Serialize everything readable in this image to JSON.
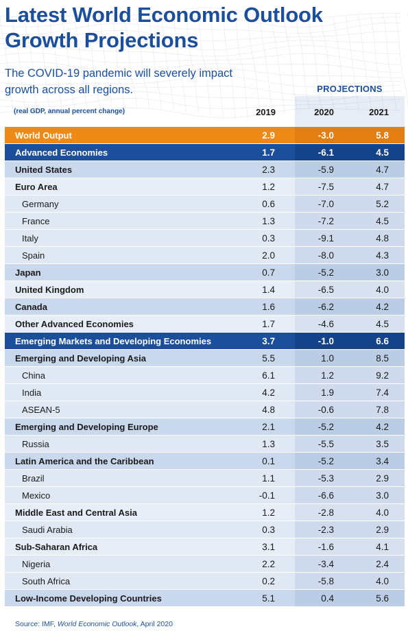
{
  "header": {
    "title_line1": "Latest World Economic Outlook",
    "title_line2": "Growth Projections",
    "subtitle_line1": "The COVID-19 pandemic will severely impact",
    "subtitle_line2": "growth across all regions.",
    "projections_label": "PROJECTIONS",
    "units_note": "(real GDP, annual percent change)",
    "col_2019": "2019",
    "col_2020": "2020",
    "col_2021": "2021"
  },
  "source": {
    "prefix": "Source: IMF, ",
    "publication": "World Economic Outlook",
    "suffix": ", April 2020"
  },
  "colors": {
    "brand_blue": "#1b4f9b",
    "orange": "#ef8a17",
    "row_light": "#e8eef7",
    "row_mid": "#c9d8ec"
  },
  "chart_data": {
    "type": "table",
    "title": "Latest World Economic Outlook Growth Projections",
    "subtitle": "The COVID-19 pandemic will severely impact growth across all regions.",
    "units": "(real GDP, annual percent change)",
    "columns": [
      "2019",
      "2020",
      "2021"
    ],
    "projection_columns": [
      "2020",
      "2021"
    ],
    "rows": [
      {
        "name": "World Output",
        "style": "world",
        "values": [
          "2.9",
          "-3.0",
          "5.8"
        ]
      },
      {
        "name": "Advanced Economies",
        "style": "group",
        "values": [
          "1.7",
          "-6.1",
          "4.5"
        ]
      },
      {
        "name": "United States",
        "style": "bold-mid",
        "values": [
          "2.3",
          "-5.9",
          "4.7"
        ]
      },
      {
        "name": "Euro Area",
        "style": "bold-light",
        "values": [
          "1.2",
          "-7.5",
          "4.7"
        ]
      },
      {
        "name": "Germany",
        "style": "indent",
        "values": [
          "0.6",
          "-7.0",
          "5.2"
        ]
      },
      {
        "name": "France",
        "style": "indent",
        "values": [
          "1.3",
          "-7.2",
          "4.5"
        ]
      },
      {
        "name": "Italy",
        "style": "indent",
        "values": [
          "0.3",
          "-9.1",
          "4.8"
        ]
      },
      {
        "name": "Spain",
        "style": "indent",
        "values": [
          "2.0",
          "-8.0",
          "4.3"
        ]
      },
      {
        "name": "Japan",
        "style": "bold-mid",
        "values": [
          "0.7",
          "-5.2",
          "3.0"
        ]
      },
      {
        "name": "United Kingdom",
        "style": "bold-light",
        "values": [
          "1.4",
          "-6.5",
          "4.0"
        ]
      },
      {
        "name": "Canada",
        "style": "bold-mid",
        "values": [
          "1.6",
          "-6.2",
          "4.2"
        ]
      },
      {
        "name": "Other Advanced Economies",
        "style": "bold-light",
        "values": [
          "1.7",
          "-4.6",
          "4.5"
        ]
      },
      {
        "name": "Emerging Markets and Developing Economies",
        "style": "group",
        "values": [
          "3.7",
          "-1.0",
          "6.6"
        ]
      },
      {
        "name": "Emerging and Developing Asia",
        "style": "bold-mid",
        "values": [
          "5.5",
          "1.0",
          "8.5"
        ]
      },
      {
        "name": "China",
        "style": "indent",
        "values": [
          "6.1",
          "1.2",
          "9.2"
        ]
      },
      {
        "name": "India",
        "style": "indent",
        "values": [
          "4.2",
          "1.9",
          "7.4"
        ]
      },
      {
        "name": "ASEAN-5",
        "style": "indent",
        "values": [
          "4.8",
          "-0.6",
          "7.8"
        ]
      },
      {
        "name": "Emerging and Developing Europe",
        "style": "bold-mid",
        "values": [
          "2.1",
          "-5.2",
          "4.2"
        ]
      },
      {
        "name": "Russia",
        "style": "indent",
        "values": [
          "1.3",
          "-5.5",
          "3.5"
        ]
      },
      {
        "name": "Latin America and the Caribbean",
        "style": "bold-mid",
        "values": [
          "0.1",
          "-5.2",
          "3.4"
        ]
      },
      {
        "name": "Brazil",
        "style": "indent",
        "values": [
          "1.1",
          "-5.3",
          "2.9"
        ]
      },
      {
        "name": "Mexico",
        "style": "indent",
        "values": [
          "-0.1",
          "-6.6",
          "3.0"
        ]
      },
      {
        "name": "Middle East and Central Asia",
        "style": "bold-light",
        "values": [
          "1.2",
          "-2.8",
          "4.0"
        ]
      },
      {
        "name": "Saudi Arabia",
        "style": "indent",
        "values": [
          "0.3",
          "-2.3",
          "2.9"
        ]
      },
      {
        "name": "Sub-Saharan Africa",
        "style": "bold-light",
        "values": [
          "3.1",
          "-1.6",
          "4.1"
        ]
      },
      {
        "name": "Nigeria",
        "style": "indent",
        "values": [
          "2.2",
          "-3.4",
          "2.4"
        ]
      },
      {
        "name": "South Africa",
        "style": "indent",
        "values": [
          "0.2",
          "-5.8",
          "4.0"
        ]
      },
      {
        "name": "Low-Income Developing Countries",
        "style": "bold-mid",
        "values": [
          "5.1",
          "0.4",
          "5.6"
        ]
      }
    ]
  }
}
